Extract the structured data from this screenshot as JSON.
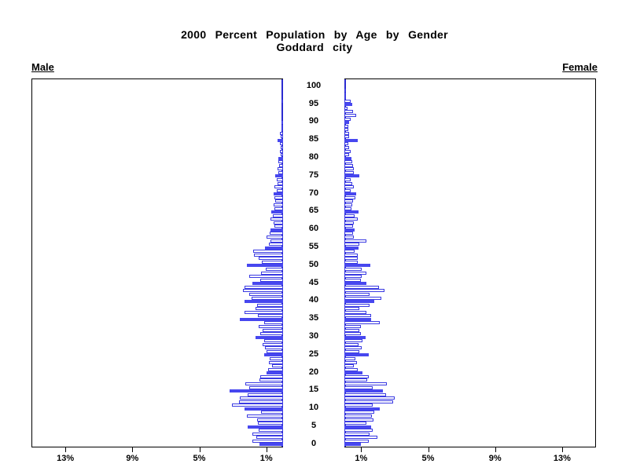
{
  "title": "2000 Percent Population by Age by Gender",
  "subtitle": "Goddard city",
  "left_panel_label": "Male",
  "right_panel_label": "Female",
  "colors": {
    "highlight_bar_fill": "#4747ef",
    "bar_outline": "#3a3ae2",
    "spine": "#2b2bd0",
    "axis": "#000000",
    "background": "#ffffff"
  },
  "chart_data": {
    "type": "bar",
    "subtype": "population-pyramid",
    "title": "2000 Percent Population by Age by Gender",
    "subtitle": "Goddard city",
    "value_unit": "%",
    "age_min": 0,
    "age_max": 100,
    "age_tick_step": 5,
    "age_tick_labels": [
      "0",
      "5",
      "10",
      "15",
      "20",
      "25",
      "30",
      "35",
      "40",
      "45",
      "50",
      "55",
      "60",
      "65",
      "70",
      "75",
      "80",
      "85",
      "90",
      "95",
      "100"
    ],
    "x_tick_values": [
      1,
      5,
      9,
      13
    ],
    "x_tick_labels": [
      "1%",
      "5%",
      "9%",
      "13%"
    ],
    "xlim": [
      0,
      15
    ],
    "highlight_every": 5,
    "grid": false,
    "legend_position": "none",
    "series": [
      {
        "name": "Male",
        "side": "left",
        "values": [
          1.4,
          1.85,
          1.6,
          1.85,
          1.45,
          2.1,
          1.5,
          1.55,
          2.15,
          1.3,
          2.3,
          3.05,
          2.65,
          2.6,
          2.1,
          3.2,
          2.0,
          2.25,
          1.4,
          1.35,
          1.0,
          0.9,
          0.65,
          0.85,
          0.8,
          1.15,
          1.0,
          1.1,
          1.2,
          1.15,
          1.65,
          1.35,
          1.2,
          1.45,
          1.15,
          2.6,
          1.5,
          2.3,
          1.65,
          1.55,
          2.3,
          1.9,
          2.0,
          2.4,
          2.3,
          1.85,
          1.35,
          2.0,
          1.3,
          1.05,
          2.15,
          1.25,
          1.45,
          1.75,
          1.8,
          1.1,
          0.85,
          0.75,
          1.0,
          0.8,
          0.75,
          0.5,
          0.55,
          0.75,
          0.6,
          0.7,
          0.5,
          0.55,
          0.45,
          0.5,
          0.55,
          0.4,
          0.5,
          0.35,
          0.4,
          0.45,
          0.3,
          0.35,
          0.25,
          0.3,
          0.3,
          0.15,
          0.2,
          0.15,
          0.2,
          0.35,
          0.15,
          0.2,
          0.1,
          0.05,
          0.05,
          0,
          0,
          0,
          0,
          0,
          0.1,
          0,
          0,
          0,
          0
        ]
      },
      {
        "name": "Female",
        "side": "right",
        "values": [
          1.0,
          1.45,
          1.95,
          1.5,
          1.7,
          1.6,
          1.3,
          1.75,
          1.65,
          1.8,
          2.1,
          1.7,
          2.9,
          3.0,
          2.5,
          2.3,
          1.7,
          2.55,
          1.35,
          1.45,
          1.1,
          0.8,
          0.55,
          0.75,
          0.65,
          1.45,
          0.9,
          1.05,
          0.85,
          1.1,
          1.25,
          1.0,
          0.9,
          1.0,
          2.1,
          1.6,
          1.6,
          1.3,
          0.9,
          1.5,
          1.8,
          2.2,
          1.5,
          2.4,
          2.05,
          1.3,
          1.0,
          1.05,
          1.3,
          1.05,
          1.55,
          0.8,
          0.8,
          0.8,
          0.6,
          0.85,
          0.9,
          1.3,
          0.55,
          0.5,
          0.6,
          0.5,
          0.55,
          0.8,
          0.6,
          0.85,
          0.4,
          0.45,
          0.5,
          0.65,
          0.7,
          0.35,
          0.55,
          0.45,
          0.35,
          0.9,
          0.55,
          0.55,
          0.5,
          0.45,
          0.4,
          0.3,
          0.35,
          0.3,
          0.25,
          0.8,
          0.3,
          0.3,
          0.25,
          0.25,
          0.3,
          0.35,
          0.7,
          0.5,
          0.2,
          0.45,
          0.35,
          0.1,
          0.1,
          0.05,
          0
        ]
      }
    ]
  }
}
